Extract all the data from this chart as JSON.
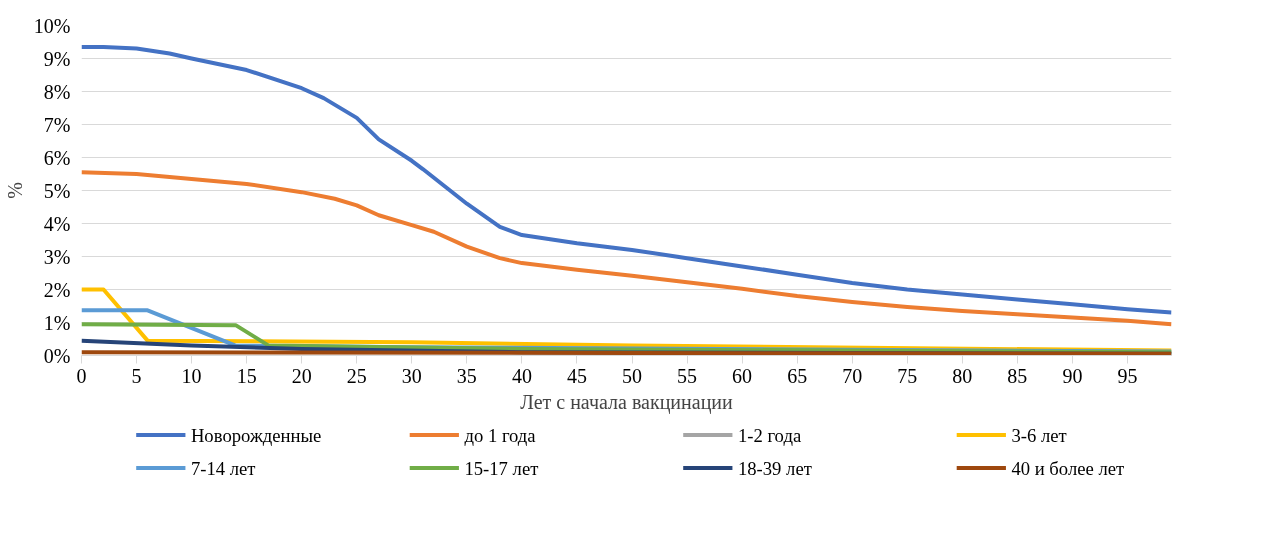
{
  "chart_data": {
    "type": "line",
    "xlabel": "Лет с начала вакцинации",
    "ylabel": "%",
    "xlim": [
      0,
      99
    ],
    "xticks": [
      0,
      5,
      10,
      15,
      20,
      25,
      30,
      35,
      40,
      45,
      50,
      55,
      60,
      65,
      70,
      75,
      80,
      85,
      90,
      95
    ],
    "ylim": [
      0,
      10
    ],
    "yticks": [
      {
        "value": 0,
        "label": "0%"
      },
      {
        "value": 1,
        "label": "1%"
      },
      {
        "value": 2,
        "label": "2%"
      },
      {
        "value": 3,
        "label": "3%"
      },
      {
        "value": 4,
        "label": "4%"
      },
      {
        "value": 5,
        "label": "5%"
      },
      {
        "value": 6,
        "label": "6%"
      },
      {
        "value": 7,
        "label": "7%"
      },
      {
        "value": 8,
        "label": "8%"
      },
      {
        "value": 9,
        "label": "9%"
      },
      {
        "value": 10,
        "label": "10%"
      }
    ],
    "grid": "y",
    "legend": "bottom",
    "marker": "none",
    "line_style": "solid",
    "series": [
      {
        "name": "Новорожденные",
        "color": "#4472c4",
        "x": [
          0,
          2,
          5,
          8,
          10,
          15,
          20,
          22,
          25,
          27,
          30,
          31,
          35,
          38,
          40,
          45,
          50,
          55,
          60,
          65,
          70,
          75,
          80,
          85,
          90,
          95,
          99
        ],
        "values": [
          9.35,
          9.35,
          9.3,
          9.15,
          9.0,
          8.65,
          8.1,
          7.8,
          7.2,
          6.55,
          5.9,
          5.65,
          4.6,
          3.9,
          3.65,
          3.4,
          3.2,
          2.95,
          2.7,
          2.45,
          2.2,
          2.0,
          1.85,
          1.7,
          1.55,
          1.4,
          1.3
        ]
      },
      {
        "name": "до 1 года",
        "color": "#ed7d31",
        "x": [
          0,
          5,
          10,
          15,
          20,
          23,
          25,
          27,
          30,
          32,
          35,
          38,
          40,
          45,
          50,
          55,
          60,
          65,
          70,
          75,
          80,
          85,
          90,
          95,
          99
        ],
        "values": [
          5.55,
          5.5,
          5.35,
          5.2,
          4.95,
          4.75,
          4.55,
          4.25,
          3.95,
          3.75,
          3.3,
          2.95,
          2.8,
          2.6,
          2.42,
          2.22,
          2.02,
          1.8,
          1.62,
          1.47,
          1.35,
          1.25,
          1.15,
          1.05,
          0.95
        ]
      },
      {
        "name": "1-2 года",
        "color": "#a5a5a5"
      },
      {
        "name": "3-6 лет",
        "color": "#ffc000",
        "x": [
          0,
          2,
          6,
          30,
          50,
          99
        ],
        "values": [
          2.0,
          2.0,
          0.45,
          0.4,
          0.3,
          0.15
        ]
      },
      {
        "name": "7-14 лет",
        "color": "#5b9bd5",
        "x": [
          0,
          6,
          14,
          30,
          99
        ],
        "values": [
          1.37,
          1.37,
          0.3,
          0.25,
          0.12
        ]
      },
      {
        "name": "15-17 лет",
        "color": "#70ad47",
        "x": [
          0,
          14,
          17,
          40,
          99
        ],
        "values": [
          0.95,
          0.92,
          0.3,
          0.2,
          0.1
        ]
      },
      {
        "name": "18-39 лет",
        "color": "#264478",
        "x": [
          0,
          10,
          20,
          40,
          99
        ],
        "values": [
          0.45,
          0.3,
          0.2,
          0.1,
          0.05
        ]
      },
      {
        "name": "40 и более лет",
        "color": "#9e480e",
        "x": [
          0,
          99
        ],
        "values": [
          0.1,
          0.05
        ]
      }
    ]
  }
}
